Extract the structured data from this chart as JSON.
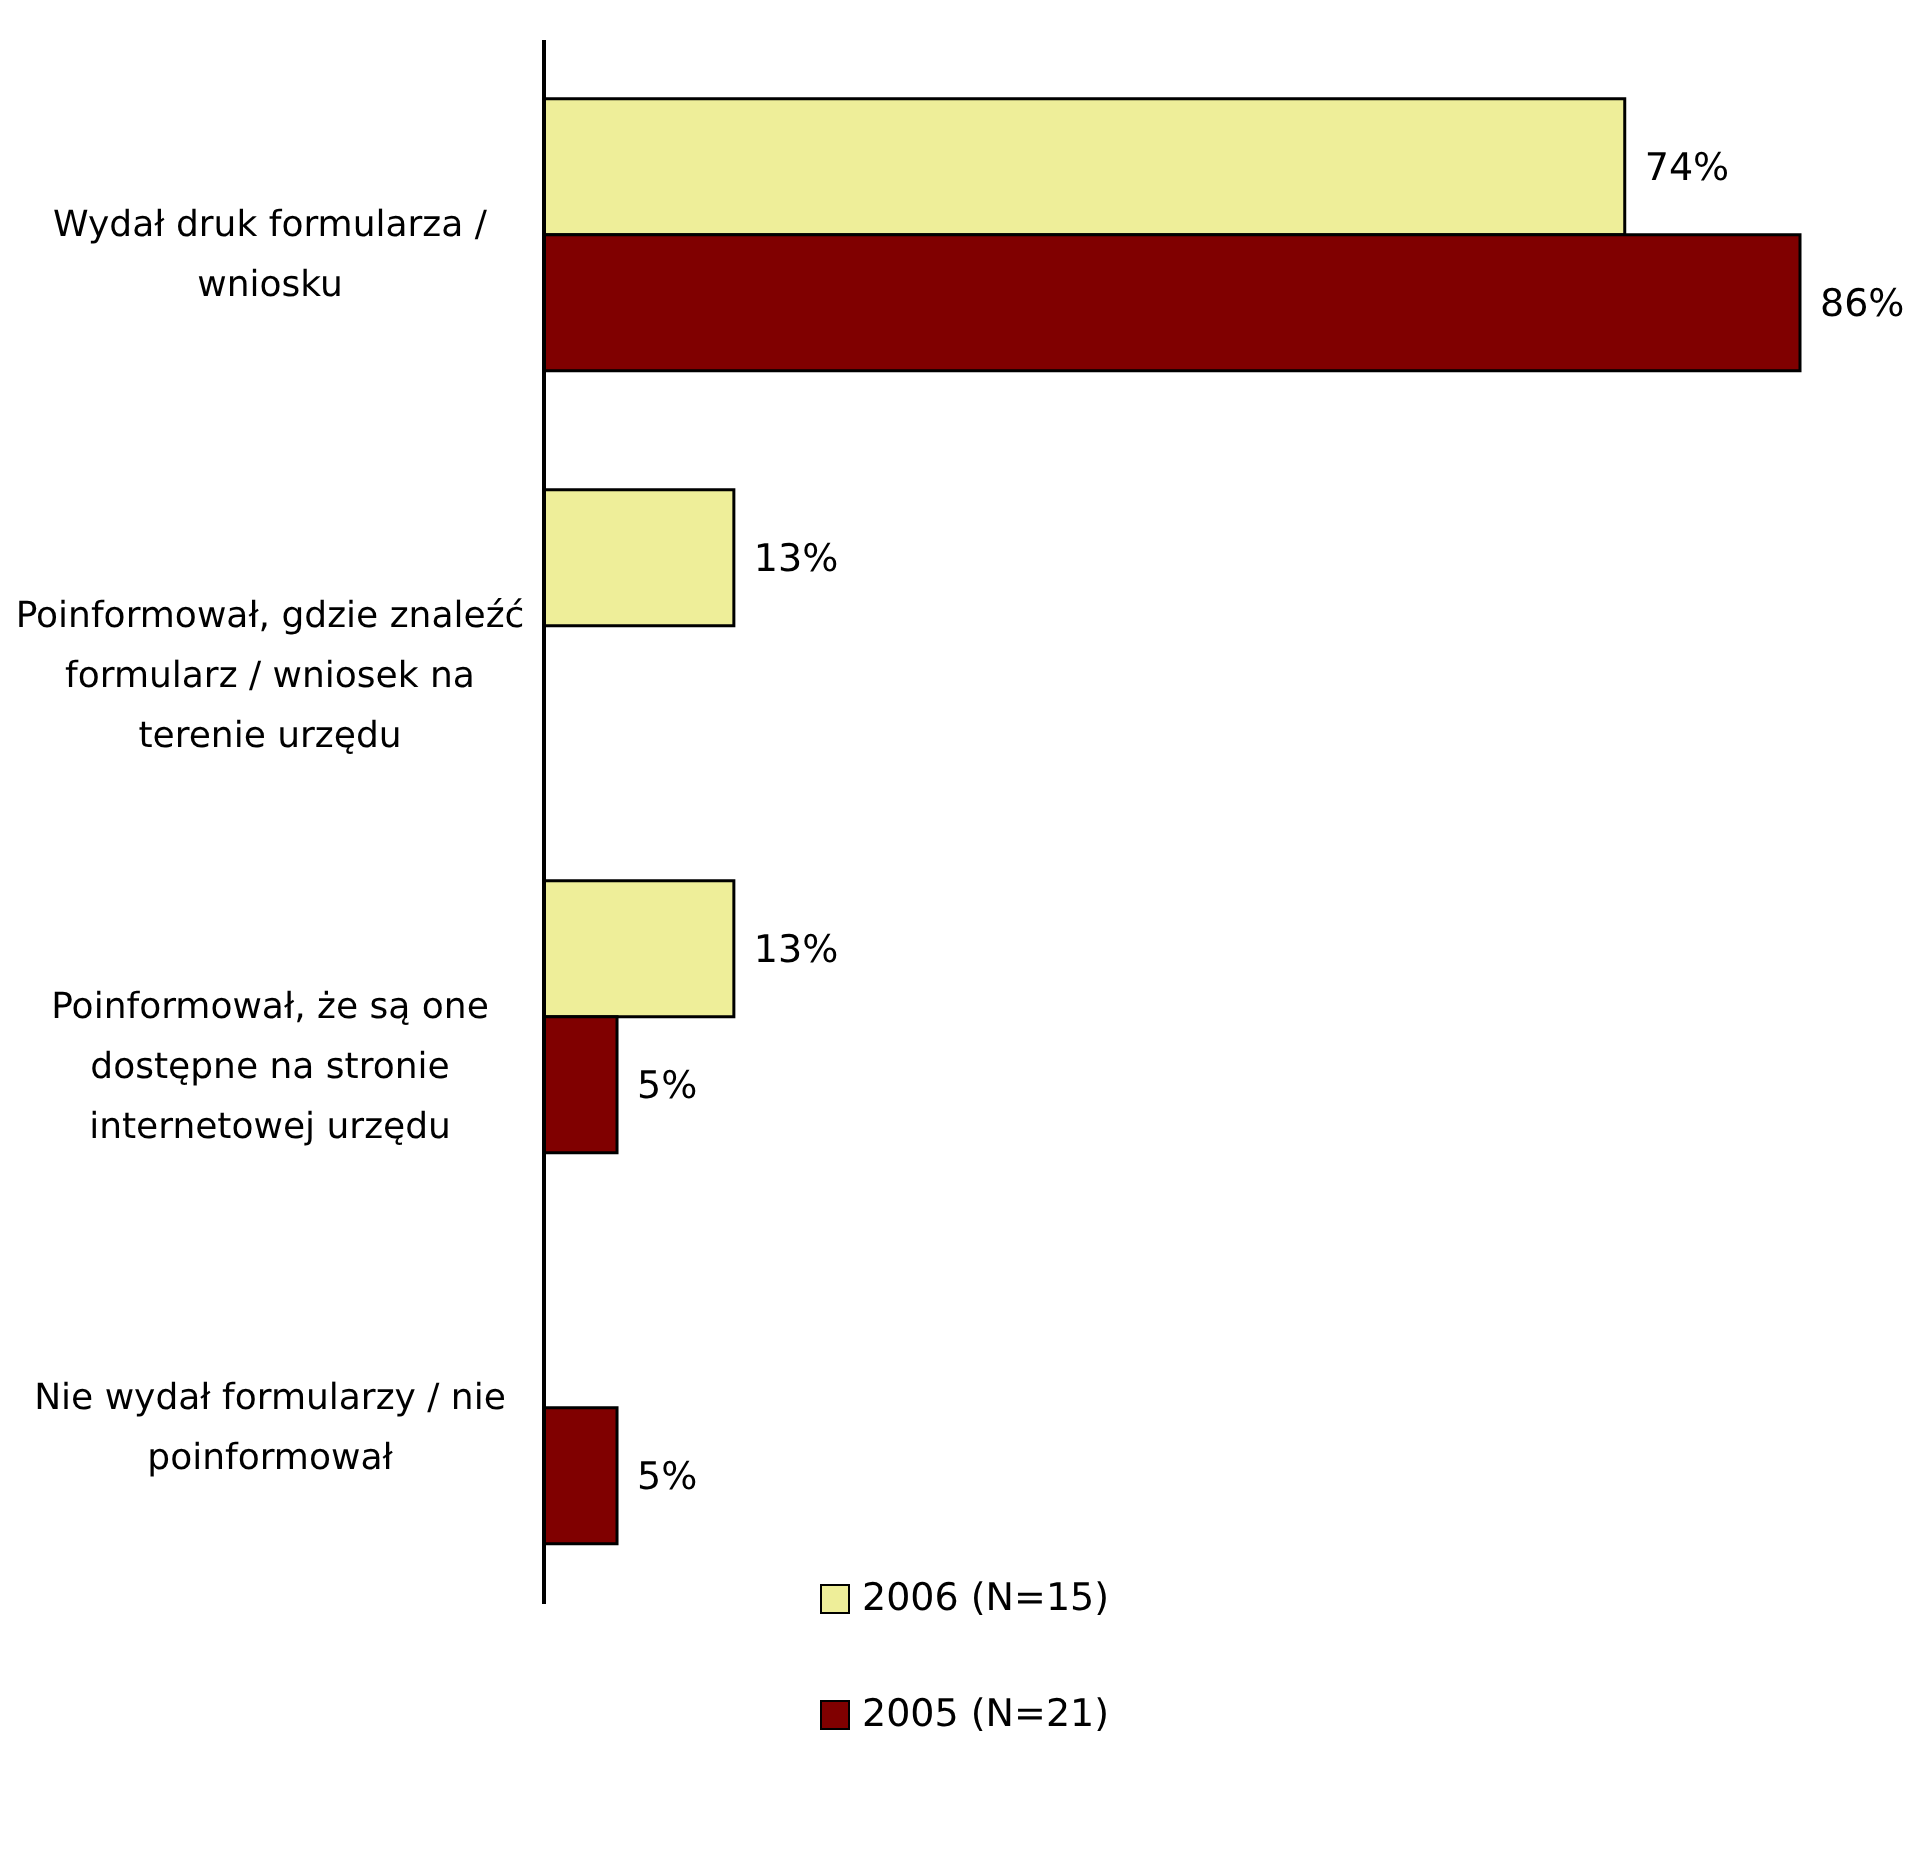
{
  "chart_data": {
    "type": "bar",
    "orientation": "horizontal",
    "legend": "bottom",
    "categories": [
      "Wydał druk formularza / wniosku",
      "Poinformował, gdzie znaleźć formularz / wniosek na terenie urzędu",
      "Poinformował, że są one dostępne na stronie internetowej urzędu",
      "Nie wydał formularzy / nie poinformował"
    ],
    "series": [
      {
        "name": "2006 (N=15)",
        "color": "#eeee99",
        "values": [
          74,
          13,
          13,
          null
        ],
        "value_labels": [
          "74%",
          "13%",
          "13%",
          null
        ]
      },
      {
        "name": "2005 (N=21)",
        "color": "#800000",
        "values": [
          86,
          null,
          5,
          5
        ],
        "value_labels": [
          "86%",
          null,
          "5%",
          "5%"
        ]
      }
    ]
  }
}
